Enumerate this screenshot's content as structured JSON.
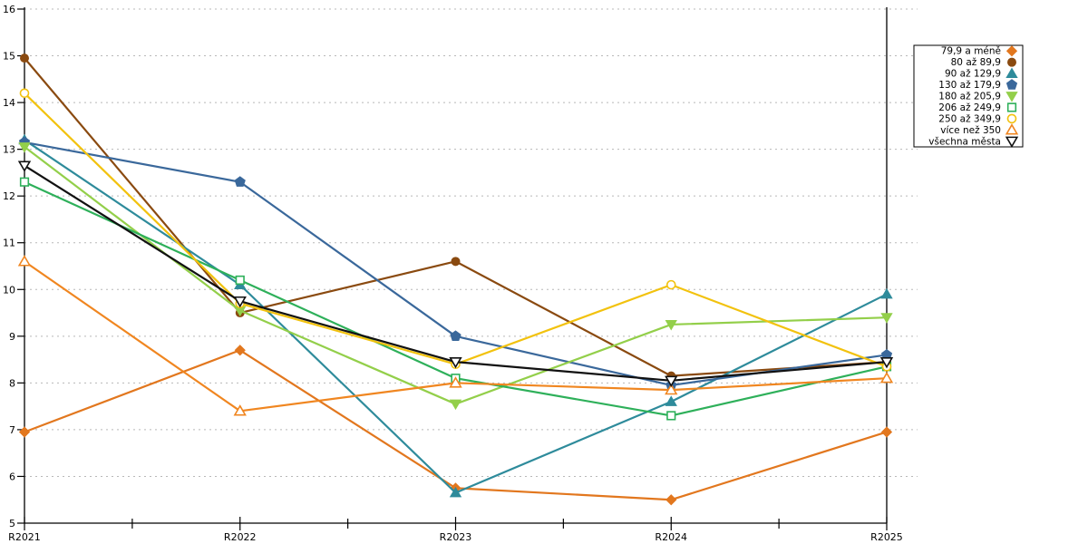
{
  "chart_data": {
    "type": "line",
    "title": "",
    "xlabel": "",
    "ylabel": "",
    "categories": [
      "R2021",
      "R2022",
      "R2023",
      "R2024",
      "R2025"
    ],
    "ylim": [
      5,
      16
    ],
    "yticks": [
      5,
      6,
      7,
      8,
      9,
      10,
      11,
      12,
      13,
      14,
      15,
      16
    ],
    "grid": "horizontal-dashed",
    "legend_position": "right-outside",
    "axis_color": "#000000",
    "grid_color": "#b8b8b8",
    "series": [
      {
        "name": "79,9 a méně",
        "color": "#e2771e",
        "marker": "diamond",
        "filled": true,
        "values": [
          6.95,
          8.7,
          5.75,
          5.5,
          6.95
        ]
      },
      {
        "name": "80 až 89,9",
        "color": "#8a4a10",
        "marker": "circle",
        "filled": true,
        "values": [
          14.95,
          9.5,
          10.6,
          8.15,
          8.45
        ]
      },
      {
        "name": "90 až 129,9",
        "color": "#2e8b9b",
        "marker": "triangle-up",
        "filled": true,
        "values": [
          13.2,
          10.1,
          5.65,
          7.6,
          9.9
        ]
      },
      {
        "name": "130 až 179,9",
        "color": "#3a689b",
        "marker": "pentagon",
        "filled": true,
        "values": [
          13.15,
          12.3,
          9.0,
          7.95,
          8.6
        ]
      },
      {
        "name": "180 až 205,9",
        "color": "#93cf4a",
        "marker": "triangle-down",
        "filled": true,
        "values": [
          13.05,
          9.55,
          7.55,
          9.25,
          9.4
        ]
      },
      {
        "name": "206 až 249,9",
        "color": "#2eb05a",
        "marker": "square",
        "filled": false,
        "values": [
          12.3,
          10.2,
          8.1,
          7.3,
          8.35
        ]
      },
      {
        "name": "250 až 349,9",
        "color": "#f2c20e",
        "marker": "circle",
        "filled": false,
        "values": [
          14.2,
          9.7,
          8.4,
          10.1,
          8.35
        ]
      },
      {
        "name": "více než 350",
        "color": "#f08620",
        "marker": "triangle-up",
        "filled": false,
        "values": [
          10.6,
          7.4,
          8.0,
          7.85,
          8.1
        ]
      },
      {
        "name": "všechna města",
        "color": "#111111",
        "marker": "triangle-down",
        "filled": false,
        "values": [
          12.65,
          9.75,
          8.45,
          8.05,
          8.45
        ]
      }
    ]
  }
}
